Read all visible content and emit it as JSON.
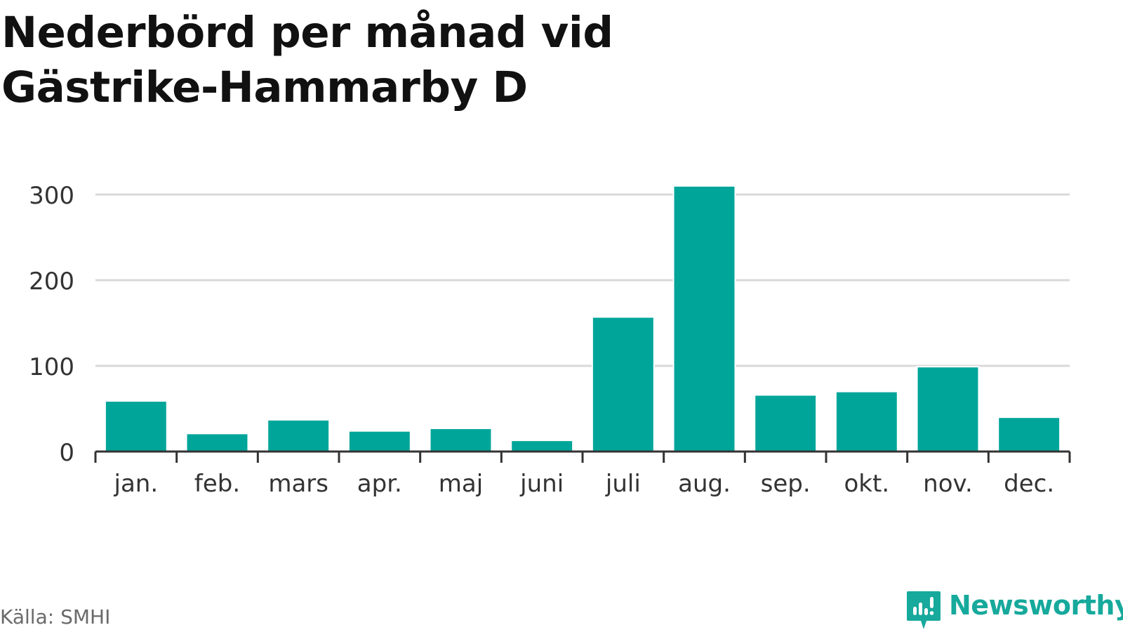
{
  "title": "Nederbörd per månad vid Gästrike-Hammarby D",
  "source": "Källa: SMHI",
  "brand": {
    "name": "Newsworthy",
    "icon": "newsworthy-logo-icon"
  },
  "colors": {
    "bar": "#00a59a",
    "grid": "#d9d9d9",
    "axis": "#333333",
    "brand": "#16a99c",
    "title": "#111111",
    "source": "#6a6a6a"
  },
  "chart_data": {
    "type": "bar",
    "title": "Nederbörd per månad vid Gästrike-Hammarby D",
    "xlabel": "",
    "ylabel": "",
    "categories": [
      "jan.",
      "feb.",
      "mars",
      "apr.",
      "maj",
      "juni",
      "juli",
      "aug.",
      "sep.",
      "okt.",
      "nov.",
      "dec."
    ],
    "values": [
      59,
      21,
      37,
      24,
      27,
      13,
      157,
      310,
      66,
      70,
      99,
      40
    ],
    "ylim": [
      0,
      300
    ],
    "yticks": [
      0,
      100,
      200,
      300
    ],
    "grid": true,
    "legend": "none"
  }
}
